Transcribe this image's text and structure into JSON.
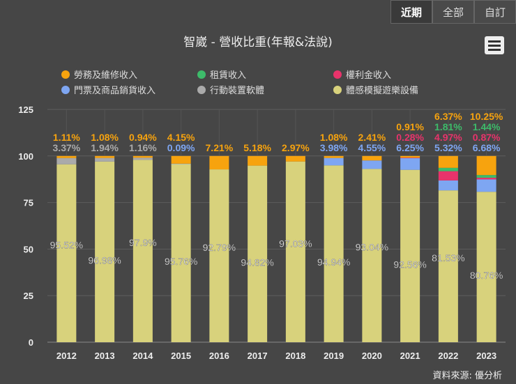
{
  "buttons": [
    "近期",
    "全部",
    "自訂"
  ],
  "source": "資料來源: 優分析",
  "chart_data": {
    "type": "bar",
    "stacked": true,
    "title": "智崴 - 營收比重(年報&法說)",
    "categories": [
      "2012",
      "2013",
      "2014",
      "2015",
      "2016",
      "2017",
      "2018",
      "2019",
      "2020",
      "2021",
      "2022",
      "2023"
    ],
    "ylim": [
      0,
      125
    ],
    "yticks": [
      0,
      25,
      50,
      75,
      100,
      125
    ],
    "grid": true,
    "legend_position": "top",
    "series": [
      {
        "name": "體感模擬遊樂設備",
        "color": "#d8d27c",
        "values": [
          95.52,
          96.98,
          97.9,
          95.76,
          92.79,
          94.82,
          97.03,
          94.94,
          93.04,
          92.56,
          81.53,
          80.76
        ]
      },
      {
        "name": "行動裝置軟體",
        "color": "#aaaaaa",
        "values": [
          3.37,
          1.94,
          1.16,
          0,
          0,
          0,
          0,
          0,
          0,
          0,
          0,
          0
        ]
      },
      {
        "name": "門票及商品銷貨收入",
        "color": "#7ea6f2",
        "values": [
          0,
          0,
          0,
          0.09,
          0,
          0,
          0,
          3.98,
          4.55,
          6.25,
          5.32,
          6.68
        ]
      },
      {
        "name": "權利金收入",
        "color": "#e8336b",
        "values": [
          0,
          0,
          0,
          0,
          0,
          0,
          0,
          0,
          0,
          0.28,
          4.97,
          0.87
        ]
      },
      {
        "name": "租賃收入",
        "color": "#3dbb6a",
        "values": [
          0,
          0,
          0,
          0,
          0,
          0,
          0,
          0,
          0,
          0,
          1.81,
          1.44
        ]
      },
      {
        "name": "勞務及維修收入",
        "color": "#f7a30e",
        "values": [
          1.11,
          1.08,
          0.94,
          4.15,
          7.21,
          5.18,
          2.97,
          1.08,
          2.41,
          0.91,
          6.37,
          10.25
        ]
      }
    ]
  }
}
